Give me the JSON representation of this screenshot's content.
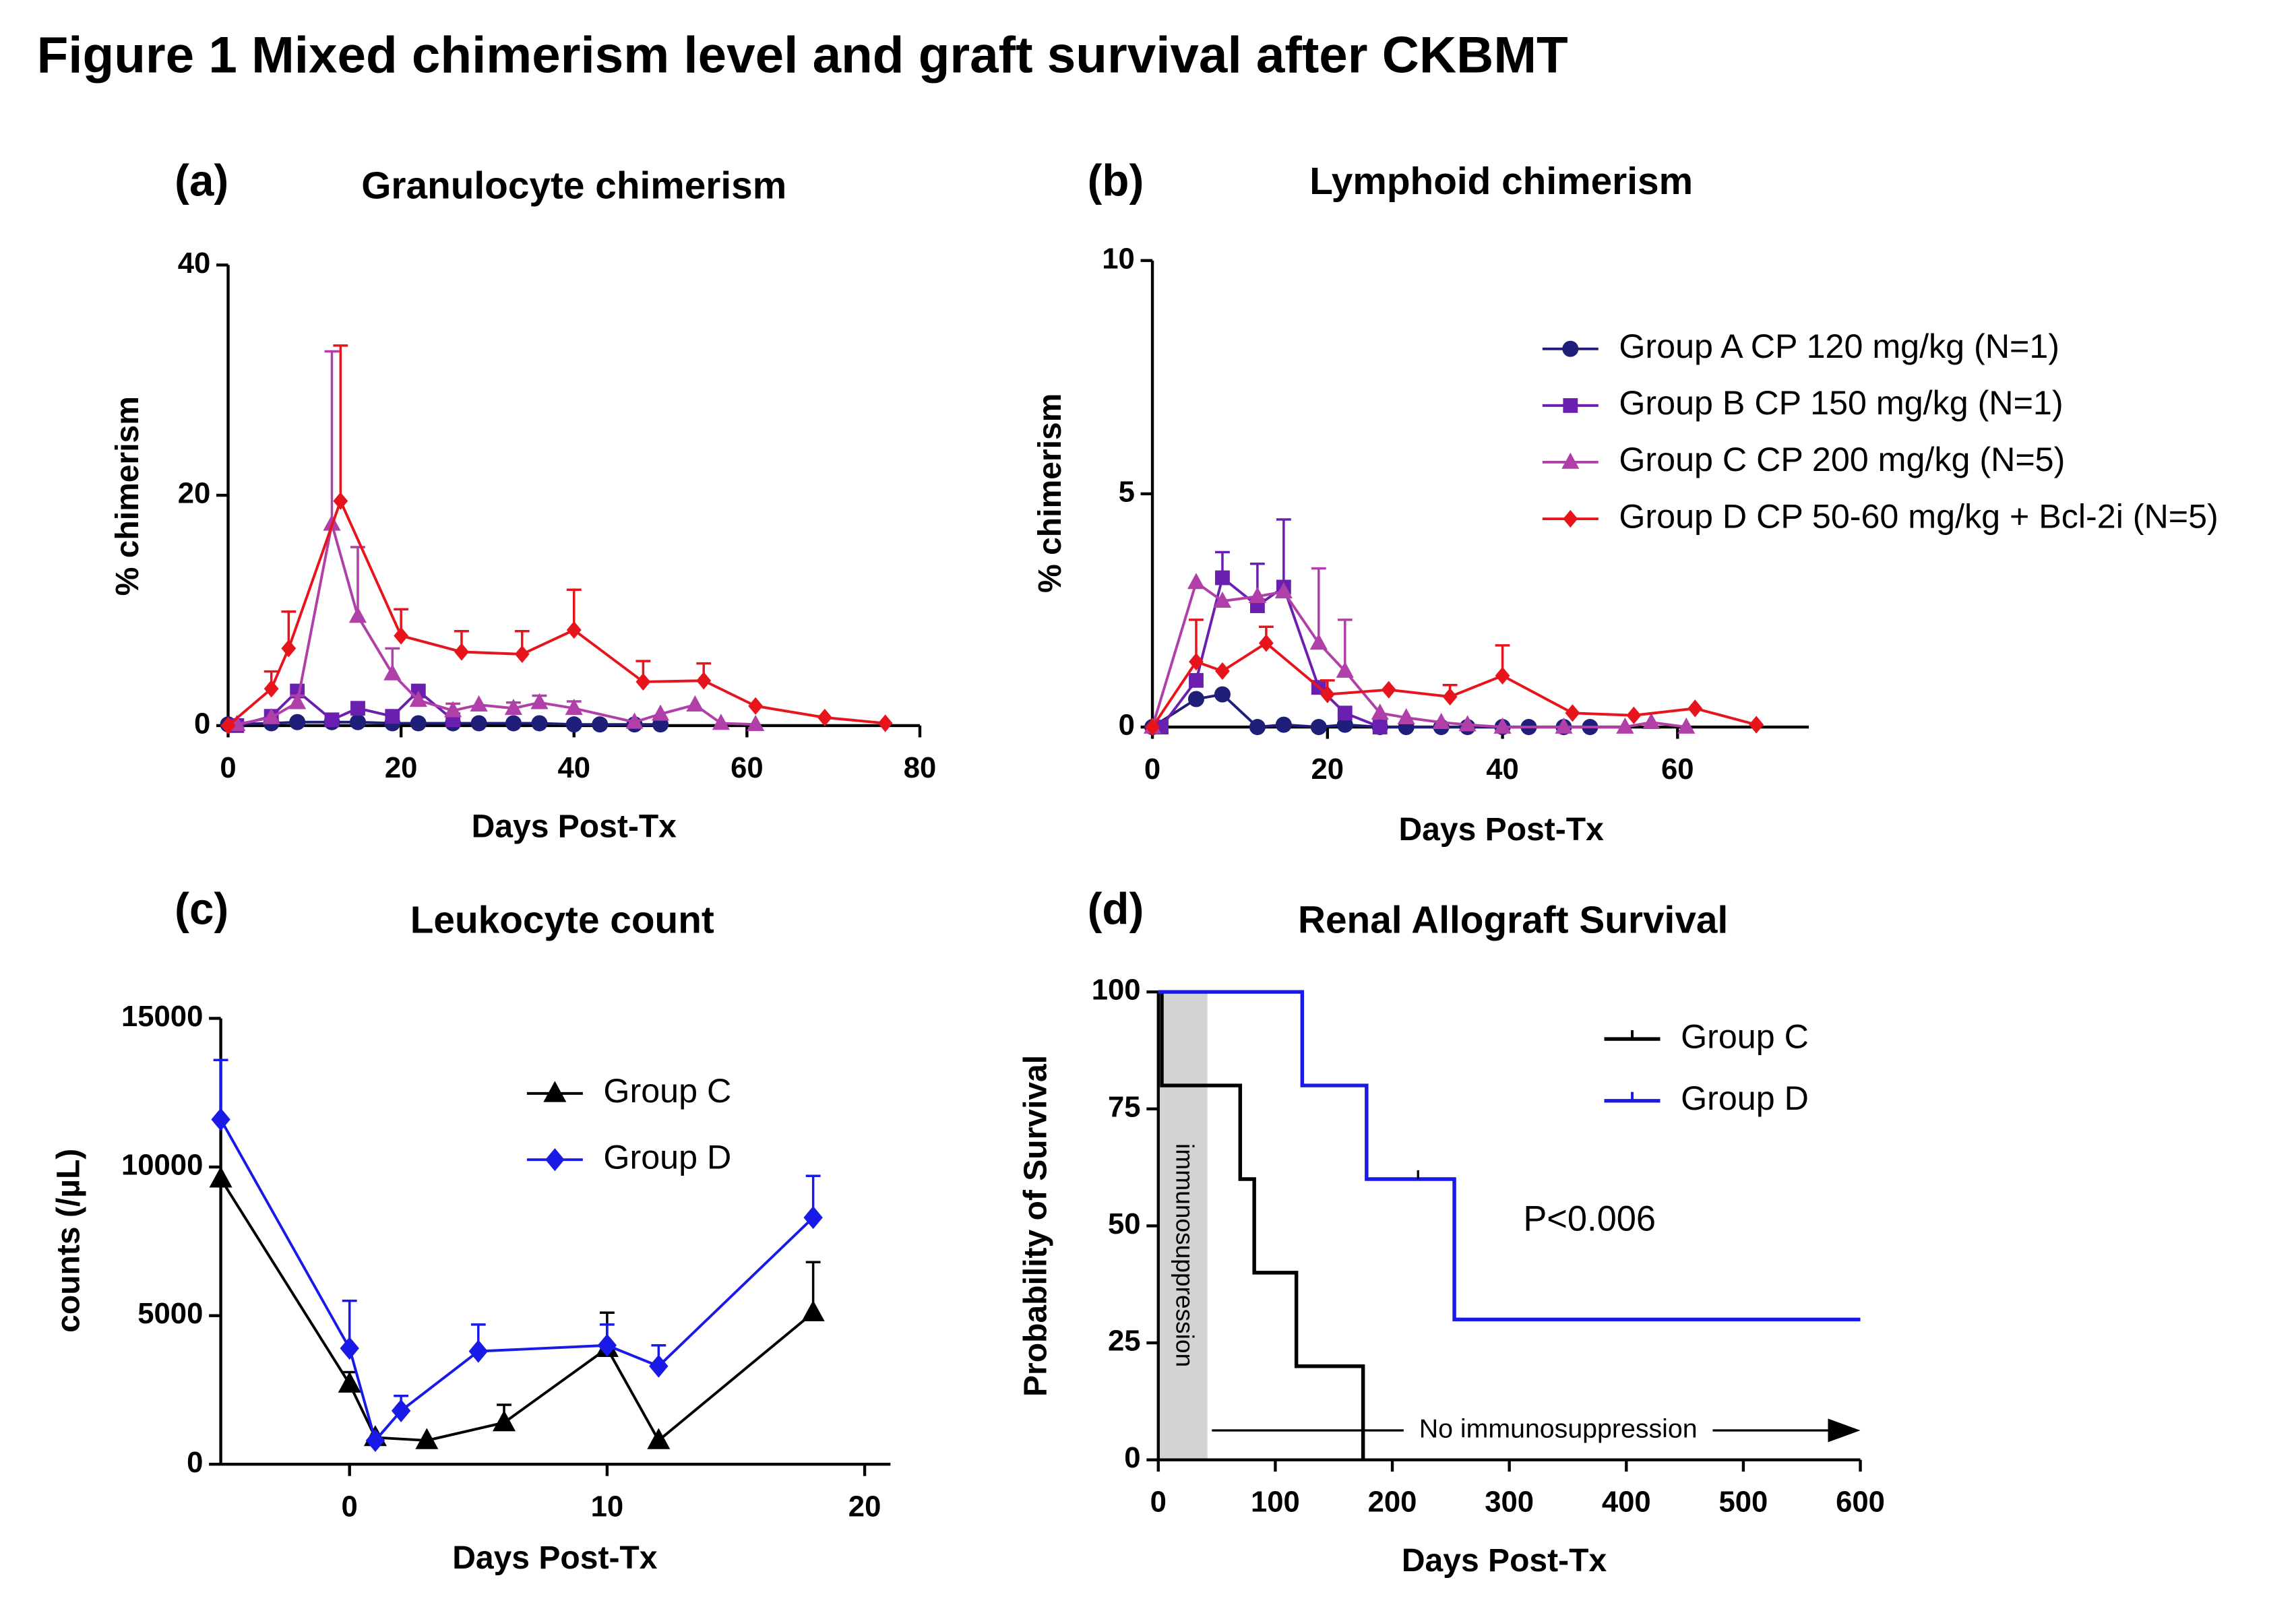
{
  "title": "Figure 1 Mixed chimerism level and graft survival after CKBMT",
  "chart_data": [
    {
      "type": "line",
      "panel_label": "(a)",
      "title": "Granulocyte chimerism",
      "x_label": "Days Post-Tx",
      "y_label": "% chimerism",
      "xlim": [
        0,
        80
      ],
      "xticks": [
        0,
        20,
        40,
        60,
        80
      ],
      "ylim": [
        0,
        40
      ],
      "yticks": [
        0,
        20,
        40
      ],
      "series": [
        {
          "color": "#1f1f7a",
          "marker": "circle",
          "x": [
            0,
            5,
            8,
            12,
            15,
            19,
            22,
            26,
            29,
            33,
            36,
            40,
            43,
            47,
            50
          ],
          "values": [
            0.1,
            0.2,
            0.3,
            0.3,
            0.3,
            0.2,
            0.2,
            0.2,
            0.2,
            0.2,
            0.2,
            0.1,
            0.1,
            0.1,
            0.1
          ]
        },
        {
          "color": "#6a1fb0",
          "marker": "square",
          "x": [
            1,
            5,
            8,
            12,
            15,
            19,
            22,
            26
          ],
          "values": [
            0,
            0.8,
            3,
            0.5,
            1.5,
            0.8,
            3,
            0.5
          ]
        },
        {
          "color": "#b040a8",
          "marker": "triangle",
          "x": [
            1,
            5,
            8,
            12,
            15,
            19,
            22,
            26,
            29,
            33,
            36,
            40,
            47,
            50,
            54,
            57,
            61
          ],
          "values": [
            0.1,
            0.7,
            2,
            17.5,
            9.5,
            4.5,
            2.2,
            1.3,
            1.8,
            1.5,
            2,
            1.5,
            0.3,
            1,
            1.8,
            0.2,
            0.1
          ],
          "errors": [
            null,
            null,
            0.6,
            15,
            6,
            2.2,
            null,
            0.6,
            null,
            0.5,
            0.6,
            0.6,
            null,
            null,
            null,
            null,
            null
          ]
        },
        {
          "color": "#e8141c",
          "marker": "diamond",
          "x": [
            0,
            5,
            7,
            13,
            20,
            27,
            34,
            40,
            48,
            55,
            61,
            69,
            76
          ],
          "values": [
            0,
            3.2,
            6.7,
            19.5,
            7.8,
            6.4,
            6.2,
            8.3,
            3.8,
            3.9,
            1.7,
            0.7,
            0.2
          ],
          "errors": [
            null,
            1.5,
            3.2,
            13.5,
            2.3,
            1.8,
            2,
            3.5,
            1.8,
            1.5,
            null,
            null,
            null
          ]
        }
      ]
    },
    {
      "type": "line",
      "panel_label": "(b)",
      "title": "Lymphoid chimerism",
      "x_label": "Days Post-Tx",
      "y_label": "% chimerism",
      "xlim": [
        0,
        75
      ],
      "xticks": [
        0,
        20,
        40,
        60
      ],
      "ylim": [
        0,
        10
      ],
      "yticks": [
        0,
        5,
        10
      ],
      "legend": "upper right",
      "series": [
        {
          "name": "Group A CP 120 mg/kg (N=1)",
          "color": "#1f1f7a",
          "marker": "circle",
          "x": [
            0,
            5,
            8,
            12,
            15,
            19,
            22,
            26,
            29,
            33,
            36,
            40,
            43,
            47,
            50
          ],
          "values": [
            0,
            0.6,
            0.7,
            0,
            0.05,
            0,
            0.05,
            0,
            0,
            0,
            0,
            0,
            0,
            0,
            0
          ]
        },
        {
          "name": "Group B CP 150 mg/kg (N=1)",
          "color": "#6a1fb0",
          "marker": "square",
          "x": [
            1,
            5,
            8,
            12,
            15,
            19,
            22,
            26
          ],
          "values": [
            0,
            1,
            3.2,
            2.6,
            3,
            0.85,
            0.3,
            0
          ],
          "errors": [
            null,
            null,
            0.55,
            0.9,
            1.45,
            null,
            null,
            null
          ]
        },
        {
          "name": "Group C CP 200 mg/kg (N=5)",
          "color": "#b040a8",
          "marker": "triangle",
          "x": [
            0,
            5,
            8,
            12,
            15,
            19,
            22,
            26,
            29,
            33,
            36,
            40,
            47,
            54,
            57,
            61
          ],
          "values": [
            0,
            3.1,
            2.7,
            2.8,
            2.9,
            1.8,
            1.2,
            0.3,
            0.2,
            0.1,
            0.05,
            0,
            0,
            0,
            0.1,
            0
          ],
          "errors": [
            null,
            null,
            null,
            null,
            null,
            1.6,
            1.1,
            null,
            null,
            null,
            null,
            null,
            null,
            null,
            null,
            null
          ]
        },
        {
          "name": "Group D CP 50-60 mg/kg + Bcl-2i (N=5)",
          "color": "#e8141c",
          "marker": "diamond",
          "x": [
            0,
            5,
            8,
            13,
            20,
            27,
            34,
            40,
            48,
            55,
            62,
            69
          ],
          "values": [
            0,
            1.4,
            1.2,
            1.8,
            0.7,
            0.8,
            0.65,
            1.1,
            0.3,
            0.25,
            0.4,
            0.05
          ],
          "errors": [
            null,
            0.9,
            null,
            0.35,
            0.3,
            null,
            0.25,
            0.65,
            null,
            null,
            null,
            null
          ]
        }
      ]
    },
    {
      "type": "line",
      "panel_label": "(c)",
      "title": "Leukocyte count",
      "x_label": "Days Post-Tx",
      "y_label": "counts (/µL)",
      "xlim": [
        -5,
        21
      ],
      "xticks": [
        0,
        10,
        20
      ],
      "ylim": [
        0,
        15000
      ],
      "yticks": [
        0,
        5000,
        10000,
        15000
      ],
      "legend": "upper center",
      "series": [
        {
          "name": "Group C",
          "color": "#000000",
          "marker": "triangle",
          "x": [
            -5,
            0,
            1,
            3,
            6,
            10,
            12,
            18
          ],
          "values": [
            9600,
            2700,
            900,
            800,
            1400,
            3900,
            800,
            5100
          ],
          "errors": [
            null,
            400,
            null,
            null,
            600,
            1200,
            null,
            1700
          ]
        },
        {
          "name": "Group D",
          "color": "#1a1ae6",
          "marker": "diamond",
          "x": [
            -5,
            0,
            1,
            2,
            5,
            10,
            12,
            18
          ],
          "values": [
            11600,
            3900,
            800,
            1800,
            3800,
            4000,
            3300,
            8300
          ],
          "errors": [
            2000,
            1600,
            null,
            500,
            900,
            700,
            700,
            1400
          ]
        }
      ]
    },
    {
      "type": "step",
      "panel_label": "(d)",
      "title": "Renal Allograft Survival",
      "x_label": "Days Post-Tx",
      "y_label": "Probability of Survival",
      "xlim": [
        0,
        600
      ],
      "xticks": [
        0,
        100,
        200,
        300,
        400,
        500,
        600
      ],
      "ylim": [
        0,
        100
      ],
      "yticks": [
        0,
        25,
        50,
        75,
        100
      ],
      "legend": "upper right",
      "shade_x": [
        0,
        42
      ],
      "shade_label": "immunosuppression",
      "annotation": "No immunosuppression",
      "p_value": "P<0.006",
      "series": [
        {
          "name": "Group C",
          "color": "#000000",
          "x": [
            0,
            3,
            70,
            82,
            118,
            175
          ],
          "values": [
            100,
            80,
            60,
            40,
            20,
            0
          ]
        },
        {
          "name": "Group D",
          "color": "#1a1ae6",
          "x": [
            0,
            123,
            178,
            253,
            600
          ],
          "values": [
            100,
            80,
            60,
            30,
            30
          ],
          "censor_x": [
            222
          ],
          "censor_values": [
            60
          ]
        }
      ]
    }
  ]
}
